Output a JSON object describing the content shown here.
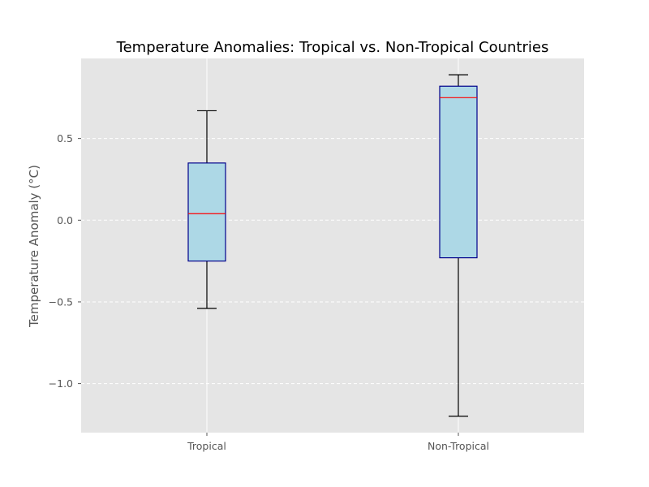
{
  "chart_data": {
    "type": "box",
    "title": "Temperature Anomalies: Tropical vs. Non-Tropical Countries",
    "xlabel": "",
    "ylabel": "Temperature Anomaly (°C)",
    "categories": [
      "Tropical",
      "Non-Tropical"
    ],
    "boxes": [
      {
        "category": "Tropical",
        "whisker_low": -0.54,
        "q1": -0.25,
        "median": 0.04,
        "q3": 0.35,
        "whisker_high": 0.67
      },
      {
        "category": "Non-Tropical",
        "whisker_low": -1.2,
        "q1": -0.23,
        "median": 0.75,
        "q3": 0.82,
        "whisker_high": 0.89
      }
    ],
    "yticks": [
      -1.0,
      -0.5,
      0.0,
      0.5
    ],
    "ytick_labels": [
      "−1.0",
      "−0.5",
      "0.0",
      "0.5"
    ],
    "ylim": [
      -1.3,
      0.99
    ],
    "grid": {
      "y": "dashed",
      "x": "solid"
    },
    "colors": {
      "plot_background": "#e5e5e5",
      "box_fill": "#add8e6",
      "box_edge": "#00008b",
      "median": "#ff0000",
      "whisker": "#000000",
      "grid": "#ffffff"
    }
  }
}
